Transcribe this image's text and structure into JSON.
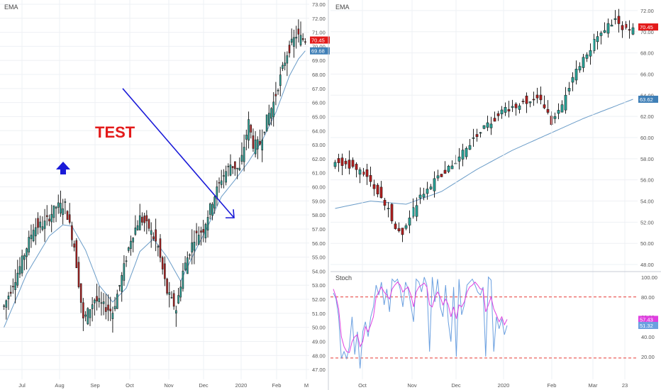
{
  "colors": {
    "up": "#26a69a",
    "down": "#b71c1c",
    "ema": "#6a9cc8",
    "stoch_k": "#6ba0e0",
    "stoch_d": "#e040e0",
    "level_line": "#e53935",
    "annotation": "#1a1ad8",
    "test_text": "#e31a1a",
    "grid": "#eef0f4",
    "axis_text": "#555555"
  },
  "icons": {
    "arrow": "up-arrow-icon"
  },
  "chart_data": [
    {
      "type": "candlestick",
      "label": "EMA",
      "x_ticks": [
        "Jul",
        "Aug",
        "Sep",
        "Oct",
        "Nov",
        "Dec",
        "2020",
        "Feb",
        "M"
      ],
      "y_ticks": [
        "47.00",
        "48.00",
        "49.00",
        "50.00",
        "51.00",
        "52.00",
        "53.00",
        "54.00",
        "55.00",
        "56.00",
        "57.00",
        "58.00",
        "59.00",
        "60.00",
        "61.00",
        "62.00",
        "63.00",
        "64.00",
        "65.00",
        "66.00",
        "67.00",
        "68.00",
        "69.00",
        "70.00",
        "71.00",
        "72.00",
        "73.00"
      ],
      "ylim": [
        46.3,
        73.3
      ],
      "price_labels": [
        {
          "text": "70.45",
          "value": 70.45,
          "color": "#e31a1a"
        },
        {
          "text": "69.68",
          "value": 69.68,
          "color": "#3f7fb7"
        }
      ],
      "annotations": {
        "text": "TEST",
        "arrow_up": "up-arrow-icon",
        "trend_line": {
          "from_value": 67.0,
          "to_value": 57.8
        }
      },
      "close_anchors": [
        [
          0,
          51.5
        ],
        [
          7,
          54.3
        ],
        [
          13,
          57.1
        ],
        [
          18,
          57.4
        ],
        [
          23,
          58.6
        ],
        [
          27,
          58.7
        ],
        [
          31,
          55.8
        ],
        [
          35,
          50.5
        ],
        [
          40,
          52.0
        ],
        [
          44,
          51.5
        ],
        [
          48,
          51.1
        ],
        [
          52,
          53.6
        ],
        [
          56,
          56.3
        ],
        [
          60,
          57.8
        ],
        [
          64,
          57.1
        ],
        [
          68,
          55.7
        ],
        [
          72,
          52.5
        ],
        [
          76,
          51.3
        ],
        [
          79,
          54.0
        ],
        [
          84,
          56.4
        ],
        [
          88,
          57.0
        ],
        [
          92,
          59.0
        ],
        [
          96,
          60.6
        ],
        [
          100,
          61.6
        ],
        [
          104,
          61.2
        ],
        [
          108,
          64.6
        ],
        [
          110,
          63.0
        ],
        [
          113,
          63.1
        ],
        [
          116,
          64.8
        ],
        [
          119,
          66.0
        ],
        [
          123,
          68.4
        ],
        [
          125,
          69.5
        ],
        [
          127,
          70.2
        ],
        [
          129,
          70.8
        ],
        [
          131,
          70.6
        ],
        [
          133,
          70.45
        ]
      ],
      "ema_anchors": [
        [
          0,
          50.0
        ],
        [
          10,
          53.8
        ],
        [
          20,
          56.5
        ],
        [
          26,
          57.3
        ],
        [
          30,
          57.2
        ],
        [
          36,
          55.5
        ],
        [
          42,
          53.0
        ],
        [
          48,
          51.8
        ],
        [
          54,
          52.8
        ],
        [
          60,
          55.4
        ],
        [
          66,
          56.3
        ],
        [
          72,
          55.0
        ],
        [
          78,
          53.3
        ],
        [
          84,
          55.3
        ],
        [
          90,
          57.2
        ],
        [
          96,
          59.3
        ],
        [
          102,
          60.5
        ],
        [
          108,
          61.8
        ],
        [
          114,
          63.3
        ],
        [
          120,
          65.3
        ],
        [
          126,
          67.9
        ],
        [
          130,
          69.1
        ],
        [
          133,
          69.68
        ]
      ]
    },
    {
      "type": "candlestick",
      "label": "EMA",
      "x_ticks": [
        "Oct",
        "Nov",
        "Dec",
        "2020",
        "Feb",
        "Mar",
        "23"
      ],
      "y_ticks": [
        "48.00",
        "50.00",
        "52.00",
        "54.00",
        "56.00",
        "58.00",
        "60.00",
        "62.00",
        "64.00",
        "66.00",
        "68.00",
        "70.00",
        "72.00"
      ],
      "ylim": [
        47.4,
        73.0
      ],
      "price_labels": [
        {
          "text": "70.45",
          "value": 70.45,
          "color": "#e31a1a"
        },
        {
          "text": "63.62",
          "value": 63.62,
          "color": "#3f7fb7"
        }
      ],
      "close_anchors": [
        [
          0,
          57.8
        ],
        [
          4,
          57.3
        ],
        [
          7,
          57.0
        ],
        [
          10,
          55.6
        ],
        [
          13,
          54.5
        ],
        [
          15,
          53.2
        ],
        [
          17,
          51.6
        ],
        [
          19,
          51.1
        ],
        [
          21,
          52.5
        ],
        [
          24,
          54.4
        ],
        [
          28,
          55.9
        ],
        [
          33,
          57.3
        ],
        [
          38,
          59.5
        ],
        [
          43,
          61.2
        ],
        [
          48,
          62.6
        ],
        [
          53,
          63.4
        ],
        [
          58,
          63.6
        ],
        [
          61,
          61.5
        ],
        [
          64,
          62.9
        ],
        [
          67,
          65.7
        ],
        [
          70,
          67.5
        ],
        [
          73,
          69.0
        ],
        [
          76,
          70.3
        ],
        [
          79,
          71.0
        ],
        [
          82,
          70.2
        ],
        [
          84,
          70.45
        ]
      ],
      "ema_anchors": [
        [
          0,
          53.3
        ],
        [
          10,
          54.0
        ],
        [
          20,
          53.7
        ],
        [
          30,
          54.9
        ],
        [
          40,
          57.0
        ],
        [
          50,
          58.8
        ],
        [
          60,
          60.3
        ],
        [
          70,
          61.8
        ],
        [
          80,
          63.1
        ],
        [
          84,
          63.62
        ]
      ]
    },
    {
      "type": "line",
      "label": "Stoch",
      "y_ticks": [
        "20.00",
        "40.00",
        "60.00",
        "80.00",
        "100.00"
      ],
      "ylim": [
        2,
        102
      ],
      "levels": [
        80,
        18.5
      ],
      "value_labels": [
        {
          "text": "57.43",
          "value": 57.43,
          "color": "#e040e0"
        },
        {
          "text": "51.32",
          "value": 51.32,
          "color": "#6ba0e0"
        }
      ],
      "series": [
        {
          "role": "%K",
          "values": [
            84,
            78,
            60,
            18,
            25,
            18,
            30,
            60,
            22,
            45,
            8,
            45,
            55,
            40,
            60,
            70,
            92,
            82,
            95,
            72,
            88,
            65,
            98,
            95,
            98,
            88,
            70,
            95,
            88,
            72,
            55,
            98,
            95,
            85,
            100,
            92,
            25,
            100,
            75,
            98,
            70,
            60,
            92,
            55,
            35,
            90,
            20,
            98,
            62,
            72,
            92,
            95,
            98,
            92,
            85,
            82,
            90,
            20,
            100,
            97,
            25,
            60,
            48,
            58,
            42,
            51.32
          ]
        },
        {
          "role": "%D",
          "values": [
            88,
            80,
            68,
            40,
            30,
            25,
            24,
            35,
            40,
            42,
            30,
            35,
            50,
            45,
            52,
            60,
            80,
            85,
            90,
            85,
            82,
            78,
            88,
            92,
            95,
            92,
            85,
            88,
            90,
            82,
            70,
            85,
            90,
            92,
            94,
            90,
            72,
            70,
            80,
            85,
            80,
            72,
            78,
            72,
            60,
            70,
            58,
            72,
            70,
            75,
            85,
            90,
            92,
            95,
            92,
            88,
            88,
            65,
            72,
            80,
            68,
            62,
            55,
            60,
            52,
            57.43
          ]
        }
      ]
    }
  ]
}
